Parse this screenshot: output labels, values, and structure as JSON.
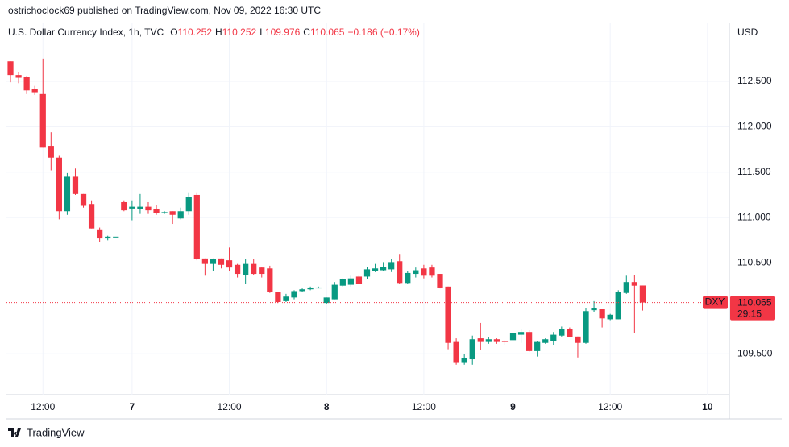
{
  "header": {
    "publisher": "ostrichoclock69 published on TradingView.com, Nov 09, 2022 16:30 UTC"
  },
  "footer": {
    "brand": "TradingView"
  },
  "chart_data": {
    "type": "candlestick",
    "title": "U.S. Dollar Currency Index, 1h, TVC",
    "ohlc_labels": [
      "O",
      "H",
      "L",
      "C"
    ],
    "change": "−0.186 (−0.17%)",
    "currency": "USD",
    "symbol": "DXY",
    "countdown": "29:15",
    "up_color": "#089981",
    "down_color": "#f23645",
    "grid": true,
    "open": [
      112.72,
      112.57,
      112.55,
      112.42,
      112.36,
      111.79,
      111.66,
      111.07,
      111.45,
      111.26,
      111.15,
      110.87,
      110.77,
      110.79,
      111.17,
      111.1,
      111.09,
      111.12,
      111.09,
      111.06,
      111.07,
      110.99,
      111.07,
      111.25,
      110.55,
      110.49,
      110.55,
      110.53,
      110.48,
      110.37,
      110.49,
      110.45,
      110.44,
      110.18,
      110.08,
      110.12,
      110.19,
      110.21,
      110.22,
      110.06,
      110.1,
      110.25,
      110.26,
      110.35,
      110.35,
      110.41,
      110.42,
      110.43,
      110.52,
      110.28,
      110.38,
      110.44,
      110.45,
      110.38,
      110.24,
      109.63,
      109.4,
      109.44,
      109.67,
      109.63,
      109.66,
      109.64,
      109.65,
      109.71,
      109.74,
      109.53,
      109.62,
      109.64,
      109.7,
      109.77,
      109.69,
      109.62,
      109.98,
      109.99,
      109.88,
      109.88,
      110.17,
      110.29,
      110.252
    ],
    "high": [
      112.72,
      112.6,
      112.56,
      112.45,
      112.75,
      111.94,
      111.68,
      111.49,
      111.54,
      111.26,
      111.19,
      110.89,
      110.8,
      110.79,
      111.19,
      111.19,
      111.26,
      111.17,
      111.14,
      111.07,
      111.07,
      111.11,
      111.27,
      111.27,
      110.55,
      110.55,
      110.55,
      110.67,
      110.49,
      110.54,
      110.54,
      110.45,
      110.47,
      110.18,
      110.16,
      110.2,
      110.22,
      110.24,
      110.24,
      110.12,
      110.29,
      110.33,
      110.36,
      110.37,
      110.46,
      110.49,
      110.51,
      110.54,
      110.6,
      110.41,
      110.45,
      110.48,
      110.48,
      110.38,
      110.24,
      109.67,
      109.5,
      109.7,
      109.84,
      109.68,
      109.67,
      109.65,
      109.76,
      109.77,
      109.76,
      109.64,
      109.67,
      109.74,
      109.8,
      109.79,
      109.69,
      110.0,
      110.08,
      109.99,
      109.94,
      110.2,
      110.36,
      110.37,
      110.252
    ],
    "low": [
      112.49,
      112.48,
      112.36,
      112.35,
      111.77,
      111.52,
      110.98,
      111.03,
      111.25,
      111.11,
      110.88,
      110.73,
      110.75,
      110.79,
      111.07,
      110.97,
      111.04,
      111.04,
      111.03,
      111.04,
      110.93,
      110.98,
      111.03,
      110.53,
      110.36,
      110.41,
      110.44,
      110.41,
      110.34,
      110.27,
      110.37,
      110.34,
      110.17,
      110.06,
      110.07,
      110.1,
      110.18,
      110.2,
      110.22,
      110.05,
      110.1,
      110.24,
      110.24,
      110.27,
      110.32,
      110.4,
      110.41,
      110.4,
      110.27,
      110.27,
      110.34,
      110.33,
      110.34,
      110.22,
      109.55,
      109.38,
      109.38,
      109.38,
      109.54,
      109.61,
      109.61,
      109.6,
      109.64,
      109.62,
      109.52,
      109.47,
      109.61,
      109.6,
      109.69,
      109.68,
      109.46,
      109.61,
      109.96,
      109.79,
      109.87,
      109.88,
      110.16,
      109.73,
      109.976
    ],
    "close": [
      112.57,
      112.54,
      112.4,
      112.38,
      111.77,
      111.66,
      111.07,
      111.45,
      111.26,
      111.13,
      110.88,
      110.77,
      110.79,
      110.79,
      111.08,
      111.12,
      111.12,
      111.08,
      111.05,
      111.06,
      111.03,
      111.07,
      111.23,
      110.54,
      110.49,
      110.54,
      110.48,
      110.45,
      110.38,
      110.49,
      110.38,
      110.38,
      110.18,
      110.07,
      110.13,
      110.19,
      110.21,
      110.23,
      110.23,
      110.12,
      110.26,
      110.32,
      110.33,
      110.27,
      110.43,
      110.44,
      110.46,
      110.51,
      110.28,
      110.39,
      110.42,
      110.36,
      110.36,
      110.23,
      109.62,
      109.4,
      109.45,
      109.66,
      109.63,
      109.66,
      109.63,
      109.63,
      109.73,
      109.74,
      109.53,
      109.63,
      109.66,
      109.71,
      109.77,
      109.68,
      109.62,
      109.97,
      110.0,
      109.89,
      109.93,
      110.18,
      110.29,
      110.25,
      110.065
    ],
    "ylim": [
      109.05,
      113.13
    ],
    "yticks": [
      {
        "value": 109.5,
        "label": "109.500"
      },
      {
        "value": 110.5,
        "label": "110.500"
      },
      {
        "value": 111,
        "label": "111.000"
      },
      {
        "value": 111.5,
        "label": "111.500"
      },
      {
        "value": 112,
        "label": "112.000"
      },
      {
        "value": 112.5,
        "label": "112.500"
      }
    ],
    "xlim": [
      -0.5,
      88.7
    ],
    "xticks": [
      {
        "value": 4,
        "label": "12:00"
      },
      {
        "value": 15,
        "label": "7"
      },
      {
        "value": 27,
        "label": "12:00"
      },
      {
        "value": 39,
        "label": "8"
      },
      {
        "value": 51,
        "label": "12:00"
      },
      {
        "value": 62,
        "label": "9"
      },
      {
        "value": 74,
        "label": "12:00"
      },
      {
        "value": 86,
        "label": "10"
      }
    ]
  }
}
